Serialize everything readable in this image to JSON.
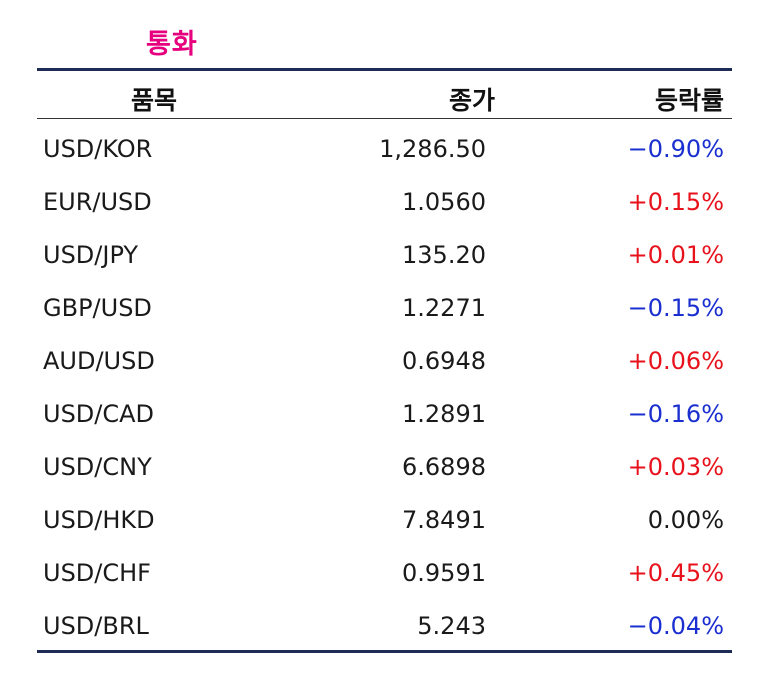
{
  "title": "통화",
  "headers": {
    "item": "품목",
    "close": "종가",
    "change": "등락률"
  },
  "rows": [
    {
      "item": "USD/KOR",
      "close": "1,286.50",
      "change": "−0.90%",
      "dir": "neg"
    },
    {
      "item": "EUR/USD",
      "close": "1.0560",
      "change": "+0.15%",
      "dir": "pos"
    },
    {
      "item": "USD/JPY",
      "close": "135.20",
      "change": "+0.01%",
      "dir": "pos"
    },
    {
      "item": "GBP/USD",
      "close": "1.2271",
      "change": "−0.15%",
      "dir": "neg"
    },
    {
      "item": "AUD/USD",
      "close": "0.6948",
      "change": "+0.06%",
      "dir": "pos"
    },
    {
      "item": "USD/CAD",
      "close": "1.2891",
      "change": "−0.16%",
      "dir": "neg"
    },
    {
      "item": "USD/CNY",
      "close": "6.6898",
      "change": "+0.03%",
      "dir": "pos"
    },
    {
      "item": "USD/HKD",
      "close": "7.8491",
      "change": "0.00%",
      "dir": "flat"
    },
    {
      "item": "USD/CHF",
      "close": "0.9591",
      "change": "+0.45%",
      "dir": "pos"
    },
    {
      "item": "USD/BRL",
      "close": "5.243",
      "change": "−0.04%",
      "dir": "neg"
    }
  ],
  "colors": {
    "title": "#e6007e",
    "rule": "#1d2b55",
    "positive": "#e8121c",
    "negative": "#1a2fd0",
    "flat": "#1a1a1a"
  }
}
